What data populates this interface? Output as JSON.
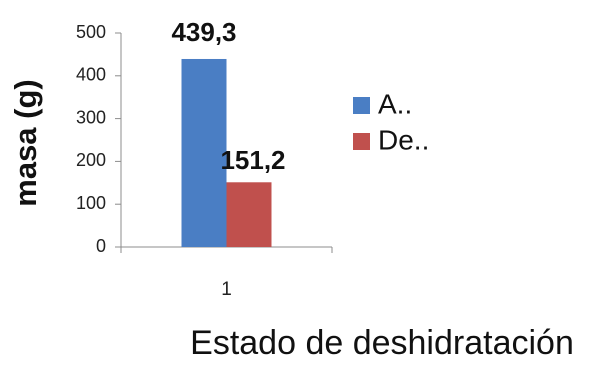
{
  "chart_data": {
    "type": "bar",
    "title": "",
    "xlabel": "Estado de deshidratación",
    "ylabel": "masa (g)",
    "categories": [
      "1"
    ],
    "ylim": [
      0,
      500
    ],
    "yticks": [
      0,
      100,
      200,
      300,
      400,
      500
    ],
    "grid": false,
    "legend_position": "right",
    "series": [
      {
        "name": "A..",
        "values": [
          439.3
        ],
        "data_labels": [
          "439,3"
        ],
        "color": "#4a7ec4"
      },
      {
        "name": "De..",
        "values": [
          151.2
        ],
        "data_labels": [
          "151,2"
        ],
        "color": "#c0504d"
      }
    ]
  }
}
